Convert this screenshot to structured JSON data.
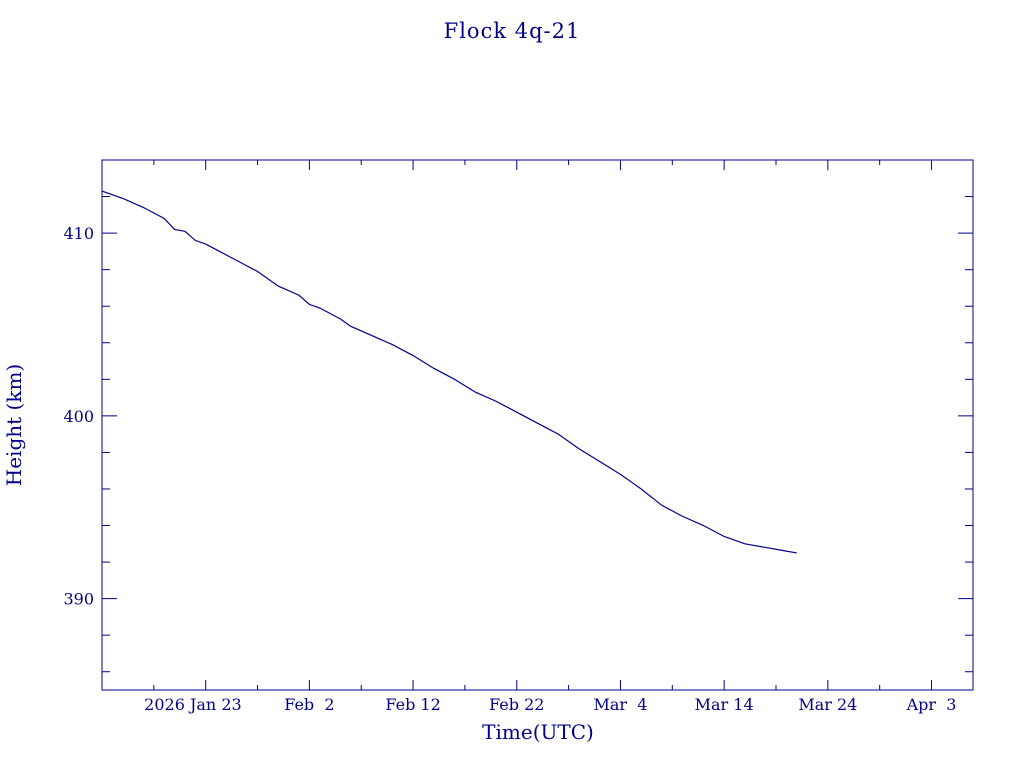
{
  "chart_data": {
    "type": "line",
    "title": "Flock 4q-21",
    "xlabel": "Time(UTC)",
    "ylabel": "Height (km)",
    "color": "#00008b",
    "x_ticks": [
      "2026 Jan 23",
      "Feb  2",
      "Feb 12",
      "Feb 22",
      "Mar  4",
      "Mar 14",
      "Mar 24",
      "Apr  3"
    ],
    "xlim": [
      "2026-01-13",
      "2026-04-07"
    ],
    "ylim": [
      385,
      414
    ],
    "y_ticks": [
      390,
      400,
      410
    ],
    "y_tick_labels": [
      "390",
      "400",
      "410"
    ],
    "series": [
      {
        "x": [
          "2026-01-13",
          "2026-01-15",
          "2026-01-17",
          "2026-01-19",
          "2026-01-20",
          "2026-01-21",
          "2026-01-22",
          "2026-01-23",
          "2026-01-24",
          "2026-01-26",
          "2026-01-28",
          "2026-01-30",
          "2026-02-01",
          "2026-02-02",
          "2026-02-03",
          "2026-02-05",
          "2026-02-06",
          "2026-02-08",
          "2026-02-10",
          "2026-02-12",
          "2026-02-14",
          "2026-02-16",
          "2026-02-18",
          "2026-02-20",
          "2026-02-22",
          "2026-02-24",
          "2026-02-26",
          "2026-02-28",
          "2026-03-02",
          "2026-03-04",
          "2026-03-06",
          "2026-03-08",
          "2026-03-10",
          "2026-03-12",
          "2026-03-14",
          "2026-03-16",
          "2026-03-18",
          "2026-03-20",
          "2026-03-21"
        ],
        "y": [
          412.3,
          411.9,
          411.4,
          410.8,
          410.2,
          410.1,
          409.6,
          409.4,
          409.1,
          408.5,
          407.9,
          407.1,
          406.6,
          406.1,
          405.9,
          405.3,
          404.9,
          404.4,
          403.9,
          403.3,
          402.6,
          402.0,
          401.3,
          400.8,
          400.2,
          399.6,
          399.0,
          398.2,
          397.5,
          396.8,
          396.0,
          395.1,
          394.5,
          394.0,
          393.4,
          393.0,
          392.8,
          392.6,
          392.5
        ]
      }
    ]
  }
}
